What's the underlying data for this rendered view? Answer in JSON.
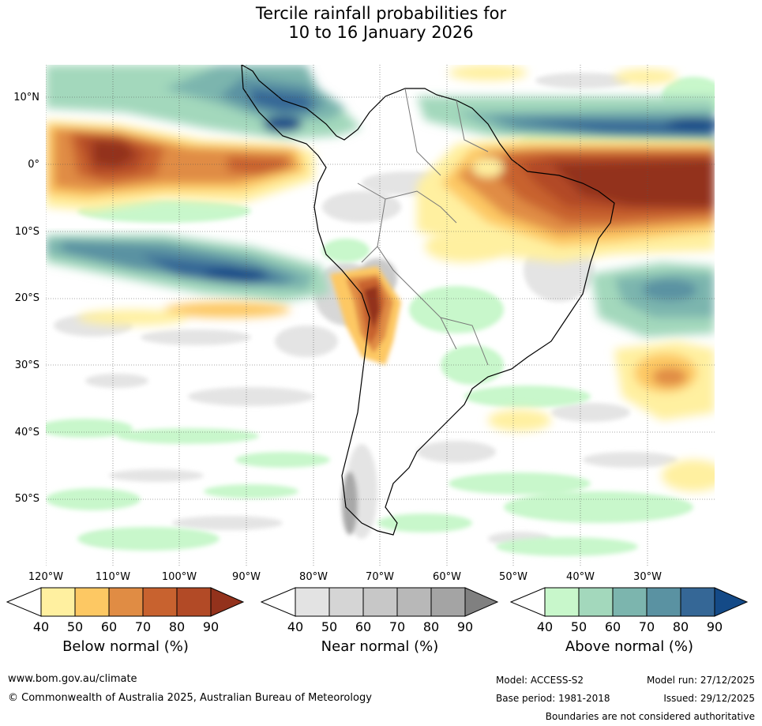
{
  "title": {
    "line1": "Tercile rainfall probabilities for",
    "line2": "10 to 16 January 2026"
  },
  "map": {
    "region": "South America and surrounding oceans",
    "lat_labels": [
      "10°N",
      "0°",
      "10°S",
      "20°S",
      "30°S",
      "40°S",
      "50°S"
    ],
    "lon_labels": [
      "120°W",
      "110°W",
      "100°W",
      "90°W",
      "80°W",
      "70°W",
      "60°W",
      "50°W",
      "40°W",
      "30°W"
    ]
  },
  "colorbars": {
    "below": {
      "title": "Below normal (%)",
      "ticks": [
        "40",
        "50",
        "60",
        "70",
        "80",
        "90"
      ],
      "colors": [
        "#fff0a0",
        "#fdc863",
        "#e08c44",
        "#c8622f",
        "#b24a26",
        "#93321c"
      ]
    },
    "near": {
      "title": "Near normal (%)",
      "ticks": [
        "40",
        "50",
        "60",
        "70",
        "80",
        "90"
      ],
      "colors": [
        "#e3e3e3",
        "#d5d5d5",
        "#c7c7c7",
        "#b8b8b8",
        "#a4a4a4",
        "#808080"
      ]
    },
    "above": {
      "title": "Above normal (%)",
      "ticks": [
        "40",
        "50",
        "60",
        "70",
        "80",
        "90"
      ],
      "colors": [
        "#c8f7cb",
        "#a3d8bc",
        "#7cb5ae",
        "#5a92a2",
        "#356796",
        "#144a87"
      ]
    }
  },
  "footer": {
    "website": "www.bom.gov.au/climate",
    "copyright": "© Commonwealth of Australia 2025, Australian Bureau of Meteorology",
    "model": "Model: ACCESS-S2",
    "base_period": "Base period: 1981-2018",
    "model_run": "Model run: 27/12/2025",
    "issued": "Issued: 29/12/2025",
    "disclaimer": "Boundaries are not considered authoritative"
  }
}
